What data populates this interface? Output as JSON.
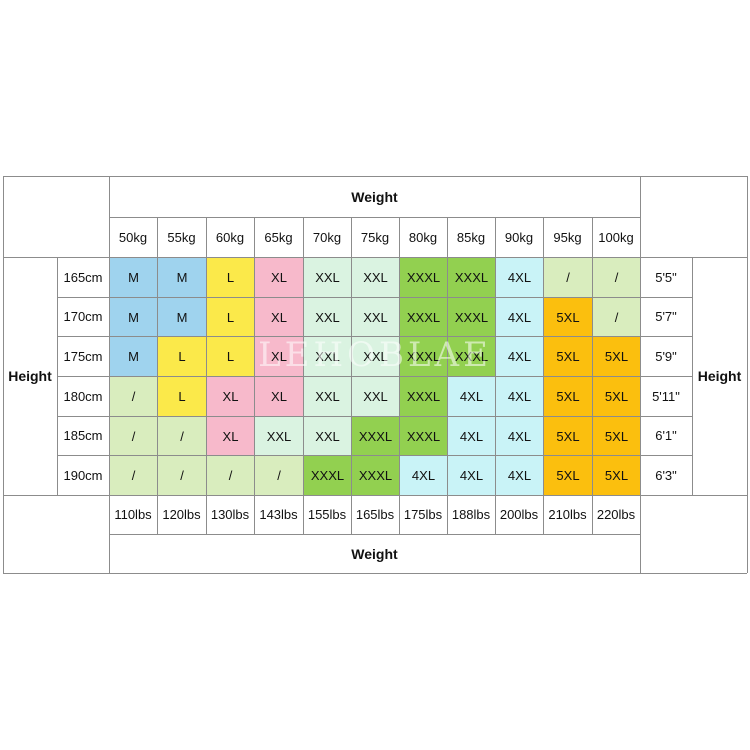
{
  "weight_title": "Weight",
  "height_title": "Height",
  "kg_columns": [
    "50kg",
    "55kg",
    "60kg",
    "65kg",
    "70kg",
    "75kg",
    "80kg",
    "85kg",
    "90kg",
    "95kg",
    "100kg"
  ],
  "lbs_columns": [
    "110lbs",
    "120lbs",
    "130lbs",
    "143lbs",
    "155lbs",
    "165lbs",
    "175lbs",
    "188lbs",
    "200lbs",
    "210lbs",
    "220lbs"
  ],
  "rows": [
    {
      "cm": "165cm",
      "ft": "5'5\"",
      "sizes": [
        "M",
        "M",
        "L",
        "XL",
        "XXL",
        "XXL",
        "XXXL",
        "XXXL",
        "4XL",
        "/",
        "/"
      ]
    },
    {
      "cm": "170cm",
      "ft": "5'7\"",
      "sizes": [
        "M",
        "M",
        "L",
        "XL",
        "XXL",
        "XXL",
        "XXXL",
        "XXXL",
        "4XL",
        "5XL",
        "/"
      ]
    },
    {
      "cm": "175cm",
      "ft": "5'9\"",
      "sizes": [
        "M",
        "L",
        "L",
        "XL",
        "XXL",
        "XXL",
        "XXXL",
        "XXXL",
        "4XL",
        "5XL",
        "5XL"
      ]
    },
    {
      "cm": "180cm",
      "ft": "5'11\"",
      "sizes": [
        "/",
        "L",
        "XL",
        "XL",
        "XXL",
        "XXL",
        "XXXL",
        "4XL",
        "4XL",
        "5XL",
        "5XL"
      ]
    },
    {
      "cm": "185cm",
      "ft": "6'1\"",
      "sizes": [
        "/",
        "/",
        "XL",
        "XXL",
        "XXL",
        "XXXL",
        "XXXL",
        "4XL",
        "4XL",
        "5XL",
        "5XL"
      ]
    },
    {
      "cm": "190cm",
      "ft": "6'3\"",
      "sizes": [
        "/",
        "/",
        "/",
        "/",
        "XXXL",
        "XXXL",
        "4XL",
        "4XL",
        "4XL",
        "5XL",
        "5XL"
      ]
    }
  ],
  "size_colors": {
    "M": "#9fd3ee",
    "L": "#fbe94a",
    "XL": "#f7b9cb",
    "XXL": "#daf3e1",
    "XXXL": "#92d050",
    "4XL": "#c9f3f7",
    "5XL": "#fbbf0e",
    "/": "#d9edbe"
  },
  "watermark": "LEHOBLAE"
}
